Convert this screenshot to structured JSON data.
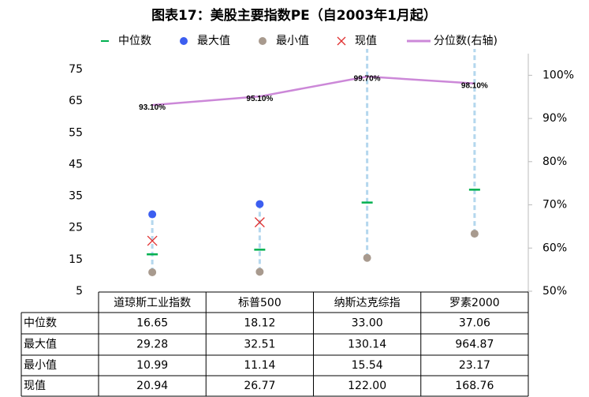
{
  "chart_data": {
    "type": "range-dot",
    "title": "图表17：美股主要指数PE（自2003年1月起）",
    "categories": [
      "道琼斯工业指数",
      "标普500",
      "纳斯达克综指",
      "罗素2000"
    ],
    "series": [
      {
        "name": "中位数",
        "color": "#00b050",
        "marker": "dash",
        "values": [
          16.65,
          18.12,
          33.0,
          37.06
        ],
        "value_labels": [
          "16.65",
          "18.12",
          "33.00",
          "37.06"
        ]
      },
      {
        "name": "最大值",
        "color": "#3c5ef0",
        "marker": "dot",
        "values": [
          29.28,
          32.51,
          130.14,
          964.87
        ],
        "value_labels": [
          "29.28",
          "32.51",
          "130.14",
          "964.87"
        ]
      },
      {
        "name": "最小值",
        "color": "#a89a8e",
        "marker": "dot",
        "values": [
          10.99,
          11.14,
          15.54,
          23.17
        ],
        "value_labels": [
          "10.99",
          "11.14",
          "15.54",
          "23.17"
        ]
      },
      {
        "name": "现值",
        "color": "#e03030",
        "marker": "cross",
        "values": [
          20.94,
          26.77,
          122.0,
          168.76
        ],
        "value_labels": [
          "20.94",
          "26.77",
          "122.00",
          "168.76"
        ]
      },
      {
        "name": "分位数(右轴)",
        "color": "#cc88d8",
        "marker": "line",
        "axis": "y2",
        "values": [
          93.1,
          95.1,
          99.7,
          98.1
        ],
        "value_labels": [
          "93.10%",
          "95.10%",
          "99.70%",
          "98.10%"
        ]
      }
    ],
    "range_color": "#b4d7ee",
    "ylim": [
      5,
      80
    ],
    "yticks": [
      5,
      15,
      25,
      35,
      45,
      55,
      65,
      75
    ],
    "y2lim": [
      50,
      105
    ],
    "y2ticks": [
      {
        "value": 50,
        "label": "50%"
      },
      {
        "value": 60,
        "label": "60%"
      },
      {
        "value": 70,
        "label": "70%"
      },
      {
        "value": 80,
        "label": "80%"
      },
      {
        "value": 90,
        "label": "90%"
      },
      {
        "value": 100,
        "label": "100%"
      }
    ],
    "grid": false
  }
}
